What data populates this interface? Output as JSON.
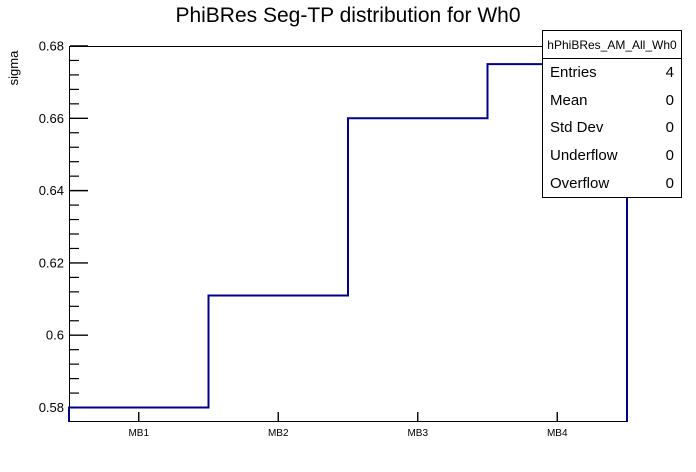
{
  "chart_data": {
    "type": "bar",
    "style": "root-step-histogram-outline",
    "title": "PhiBRes Seg-TP distribution for Wh0",
    "xlabel": "",
    "ylabel": "sigma",
    "categories": [
      "MB1",
      "MB2",
      "MB3",
      "MB4"
    ],
    "values": [
      0.58,
      0.611,
      0.66,
      0.675
    ],
    "ylim": [
      0.576,
      0.68
    ],
    "yticks": [
      0.58,
      0.6,
      0.62,
      0.64,
      0.66,
      0.68
    ],
    "ytick_labels": [
      "0.58",
      "0.6",
      "0.62",
      "0.64",
      "0.66",
      "0.68"
    ],
    "y_minor_tick_step": 0.004,
    "grid": "off",
    "legend": "none",
    "line_color": "#000080",
    "axis_color": "#000000",
    "background_color": "#ffffff"
  },
  "stats": {
    "title": "hPhiBRes_AM_All_Wh0",
    "rows": [
      {
        "label": "Entries",
        "value": "4"
      },
      {
        "label": "Mean",
        "value": "0"
      },
      {
        "label": "Std Dev",
        "value": "0"
      },
      {
        "label": "Underflow",
        "value": "0"
      },
      {
        "label": "Overflow",
        "value": "0"
      }
    ]
  }
}
